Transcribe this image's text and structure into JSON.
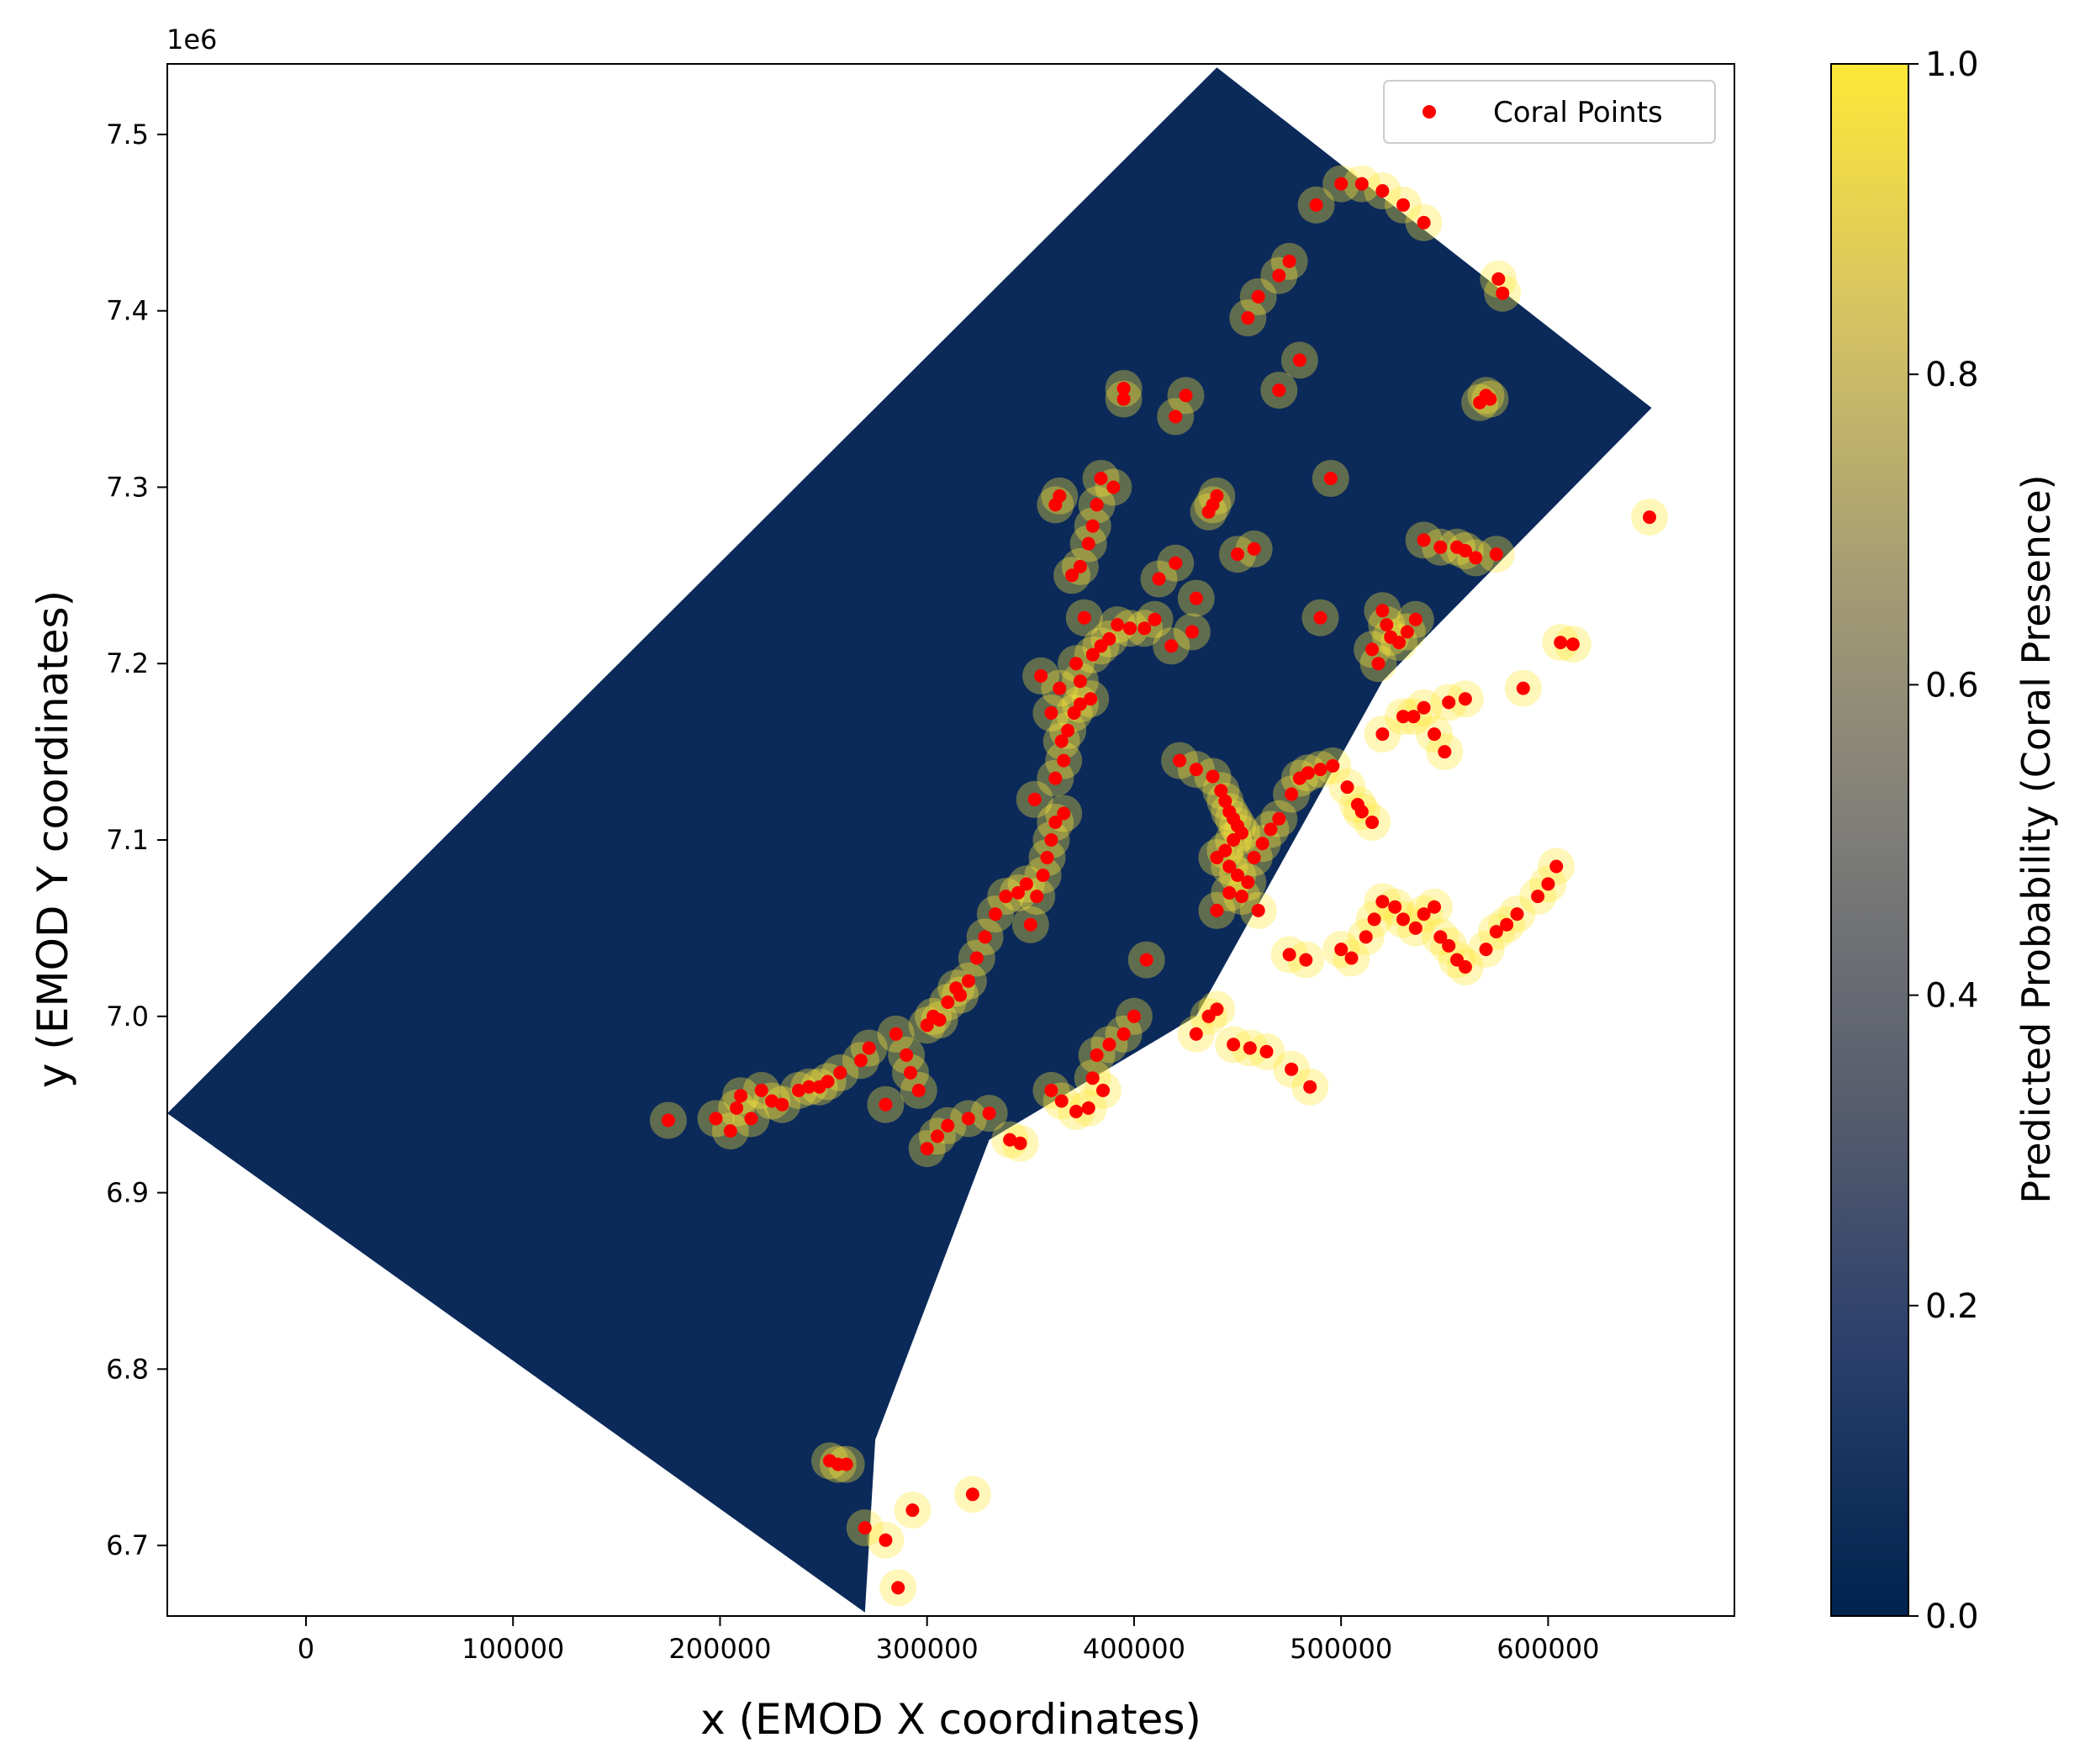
{
  "chart_data": {
    "type": "scatter",
    "title": "",
    "xlabel": "x (EMOD X coordinates)",
    "ylabel": "y (EMOD Y coordinates)",
    "xlim": [
      -67000,
      690000
    ],
    "ylim": [
      6660000,
      7540000
    ],
    "x_ticks": [
      0,
      100000,
      200000,
      300000,
      400000,
      500000,
      600000
    ],
    "x_tick_labels": [
      "0",
      "100000",
      "200000",
      "300000",
      "400000",
      "500000",
      "600000"
    ],
    "y_ticks": [
      6700000,
      6800000,
      6900000,
      7000000,
      7100000,
      7200000,
      7300000,
      7400000,
      7500000
    ],
    "y_tick_labels": [
      "6.7",
      "6.8",
      "6.9",
      "7.0",
      "7.1",
      "7.2",
      "7.3",
      "7.4",
      "7.5"
    ],
    "y_offset_label": "1e6",
    "grid": false,
    "legend_position": "top-right",
    "colorbar": {
      "label": "Predicted Probability (Coral Presence)",
      "range": [
        0,
        1
      ],
      "ticks": [
        "0.0",
        "0.2",
        "0.4",
        "0.6",
        "0.8",
        "1.0"
      ],
      "colors": [
        "#00224e",
        "#2a3f6c",
        "#575d6d",
        "#7d7c78",
        "#a59c74",
        "#d3c164",
        "#fee838"
      ]
    },
    "background_raster": {
      "description_values": "predicted probability surface over survey polygon",
      "polygon": [
        [
          -67000,
          6945000
        ],
        [
          440000,
          7538000
        ],
        [
          650000,
          7345000
        ],
        [
          520000,
          7190000
        ],
        [
          430000,
          7000000
        ],
        [
          330000,
          6930000
        ],
        [
          275000,
          6760000
        ],
        [
          270000,
          6662000
        ]
      ],
      "low_color": "#0b2a5a",
      "high_color": "#fee838"
    },
    "series": [
      {
        "name": "Coral Points",
        "color": "#ff0000",
        "points": [
          [
            175000,
            6941000
          ],
          [
            198000,
            6942000
          ],
          [
            205000,
            6935000
          ],
          [
            208000,
            6948000
          ],
          [
            210000,
            6955000
          ],
          [
            215000,
            6942000
          ],
          [
            220000,
            6958000
          ],
          [
            225000,
            6952000
          ],
          [
            230000,
            6950000
          ],
          [
            238000,
            6958000
          ],
          [
            243000,
            6960000
          ],
          [
            248000,
            6960000
          ],
          [
            252000,
            6963000
          ],
          [
            258000,
            6968000
          ],
          [
            268000,
            6975000
          ],
          [
            272000,
            6982000
          ],
          [
            280000,
            6950000
          ],
          [
            285000,
            6990000
          ],
          [
            290000,
            6978000
          ],
          [
            292000,
            6968000
          ],
          [
            296000,
            6958000
          ],
          [
            300000,
            6995000
          ],
          [
            303000,
            7000000
          ],
          [
            306000,
            6998000
          ],
          [
            310000,
            7008000
          ],
          [
            314000,
            7016000
          ],
          [
            316000,
            7012000
          ],
          [
            320000,
            7020000
          ],
          [
            324000,
            7033000
          ],
          [
            328000,
            7045000
          ],
          [
            333000,
            7058000
          ],
          [
            338000,
            7068000
          ],
          [
            344000,
            7070000
          ],
          [
            348000,
            7075000
          ],
          [
            350000,
            7052000
          ],
          [
            353000,
            7068000
          ],
          [
            356000,
            7080000
          ],
          [
            358000,
            7090000
          ],
          [
            360000,
            7100000
          ],
          [
            362000,
            7110000
          ],
          [
            366000,
            7115000
          ],
          [
            352000,
            7123000
          ],
          [
            362000,
            7135000
          ],
          [
            366000,
            7145000
          ],
          [
            365000,
            7156000
          ],
          [
            368000,
            7162000
          ],
          [
            371000,
            7172000
          ],
          [
            374000,
            7177000
          ],
          [
            379000,
            7180000
          ],
          [
            360000,
            7172000
          ],
          [
            364000,
            7186000
          ],
          [
            374000,
            7190000
          ],
          [
            355000,
            7193000
          ],
          [
            372000,
            7200000
          ],
          [
            380000,
            7205000
          ],
          [
            384000,
            7210000
          ],
          [
            388000,
            7214000
          ],
          [
            392000,
            7222000
          ],
          [
            398000,
            7220000
          ],
          [
            405000,
            7220000
          ],
          [
            376000,
            7226000
          ],
          [
            370000,
            7250000
          ],
          [
            374000,
            7255000
          ],
          [
            378000,
            7268000
          ],
          [
            380000,
            7278000
          ],
          [
            382000,
            7290000
          ],
          [
            384000,
            7305000
          ],
          [
            390000,
            7300000
          ],
          [
            362000,
            7290000
          ],
          [
            364000,
            7295000
          ],
          [
            395000,
            7350000
          ],
          [
            395000,
            7356000
          ],
          [
            420000,
            7340000
          ],
          [
            425000,
            7352000
          ],
          [
            436000,
            7286000
          ],
          [
            438000,
            7290000
          ],
          [
            440000,
            7295000
          ],
          [
            412000,
            7248000
          ],
          [
            420000,
            7257000
          ],
          [
            430000,
            7237000
          ],
          [
            410000,
            7225000
          ],
          [
            418000,
            7210000
          ],
          [
            428000,
            7218000
          ],
          [
            422000,
            7145000
          ],
          [
            430000,
            7140000
          ],
          [
            438000,
            7136000
          ],
          [
            442000,
            7128000
          ],
          [
            444000,
            7122000
          ],
          [
            446000,
            7116000
          ],
          [
            448000,
            7112000
          ],
          [
            450000,
            7108000
          ],
          [
            452000,
            7104000
          ],
          [
            448000,
            7100000
          ],
          [
            444000,
            7094000
          ],
          [
            440000,
            7090000
          ],
          [
            446000,
            7085000
          ],
          [
            450000,
            7080000
          ],
          [
            455000,
            7076000
          ],
          [
            458000,
            7090000
          ],
          [
            462000,
            7098000
          ],
          [
            466000,
            7106000
          ],
          [
            470000,
            7112000
          ],
          [
            476000,
            7126000
          ],
          [
            480000,
            7135000
          ],
          [
            484000,
            7138000
          ],
          [
            490000,
            7140000
          ],
          [
            496000,
            7142000
          ],
          [
            503000,
            7130000
          ],
          [
            508000,
            7120000
          ],
          [
            510000,
            7116000
          ],
          [
            515000,
            7110000
          ],
          [
            520000,
            7160000
          ],
          [
            530000,
            7170000
          ],
          [
            535000,
            7170000
          ],
          [
            540000,
            7175000
          ],
          [
            552000,
            7178000
          ],
          [
            560000,
            7180000
          ],
          [
            545000,
            7160000
          ],
          [
            550000,
            7150000
          ],
          [
            440000,
            7060000
          ],
          [
            446000,
            7070000
          ],
          [
            452000,
            7068000
          ],
          [
            460000,
            7060000
          ],
          [
            475000,
            7035000
          ],
          [
            483000,
            7032000
          ],
          [
            500000,
            7038000
          ],
          [
            505000,
            7033000
          ],
          [
            512000,
            7045000
          ],
          [
            516000,
            7055000
          ],
          [
            520000,
            7065000
          ],
          [
            526000,
            7062000
          ],
          [
            530000,
            7055000
          ],
          [
            536000,
            7050000
          ],
          [
            540000,
            7058000
          ],
          [
            545000,
            7062000
          ],
          [
            548000,
            7045000
          ],
          [
            552000,
            7040000
          ],
          [
            556000,
            7032000
          ],
          [
            560000,
            7028000
          ],
          [
            570000,
            7038000
          ],
          [
            575000,
            7048000
          ],
          [
            580000,
            7052000
          ],
          [
            585000,
            7058000
          ],
          [
            595000,
            7068000
          ],
          [
            600000,
            7075000
          ],
          [
            604000,
            7085000
          ],
          [
            406000,
            7032000
          ],
          [
            400000,
            7000000
          ],
          [
            395000,
            6990000
          ],
          [
            388000,
            6984000
          ],
          [
            382000,
            6978000
          ],
          [
            380000,
            6965000
          ],
          [
            385000,
            6958000
          ],
          [
            378000,
            6948000
          ],
          [
            372000,
            6946000
          ],
          [
            365000,
            6952000
          ],
          [
            360000,
            6958000
          ],
          [
            345000,
            6928000
          ],
          [
            340000,
            6930000
          ],
          [
            330000,
            6945000
          ],
          [
            320000,
            6942000
          ],
          [
            310000,
            6938000
          ],
          [
            305000,
            6932000
          ],
          [
            300000,
            6925000
          ],
          [
            430000,
            6990000
          ],
          [
            436000,
            7000000
          ],
          [
            440000,
            7004000
          ],
          [
            448000,
            6984000
          ],
          [
            456000,
            6982000
          ],
          [
            464000,
            6980000
          ],
          [
            476000,
            6970000
          ],
          [
            485000,
            6960000
          ],
          [
            540000,
            7270000
          ],
          [
            548000,
            7266000
          ],
          [
            556000,
            7266000
          ],
          [
            560000,
            7264000
          ],
          [
            565000,
            7260000
          ],
          [
            575000,
            7262000
          ],
          [
            520000,
            7230000
          ],
          [
            522000,
            7222000
          ],
          [
            524000,
            7215000
          ],
          [
            528000,
            7212000
          ],
          [
            532000,
            7218000
          ],
          [
            536000,
            7225000
          ],
          [
            515000,
            7208000
          ],
          [
            518000,
            7200000
          ],
          [
            490000,
            7226000
          ],
          [
            450000,
            7262000
          ],
          [
            458000,
            7265000
          ],
          [
            495000,
            7305000
          ],
          [
            470000,
            7355000
          ],
          [
            480000,
            7372000
          ],
          [
            455000,
            7396000
          ],
          [
            460000,
            7408000
          ],
          [
            470000,
            7420000
          ],
          [
            475000,
            7428000
          ],
          [
            488000,
            7460000
          ],
          [
            500000,
            7472000
          ],
          [
            510000,
            7472000
          ],
          [
            520000,
            7468000
          ],
          [
            530000,
            7460000
          ],
          [
            540000,
            7450000
          ],
          [
            567000,
            7348000
          ],
          [
            570000,
            7352000
          ],
          [
            572000,
            7350000
          ],
          [
            576000,
            7418000
          ],
          [
            578000,
            7410000
          ],
          [
            606000,
            7212000
          ],
          [
            612000,
            7211000
          ],
          [
            588000,
            7186000
          ],
          [
            649000,
            7283000
          ],
          [
            253000,
            6748000
          ],
          [
            257000,
            6746000
          ],
          [
            261000,
            6746000
          ],
          [
            270000,
            6710000
          ],
          [
            280000,
            6703000
          ],
          [
            286000,
            6676000
          ],
          [
            293000,
            6720000
          ],
          [
            322000,
            6729000
          ]
        ]
      }
    ]
  }
}
